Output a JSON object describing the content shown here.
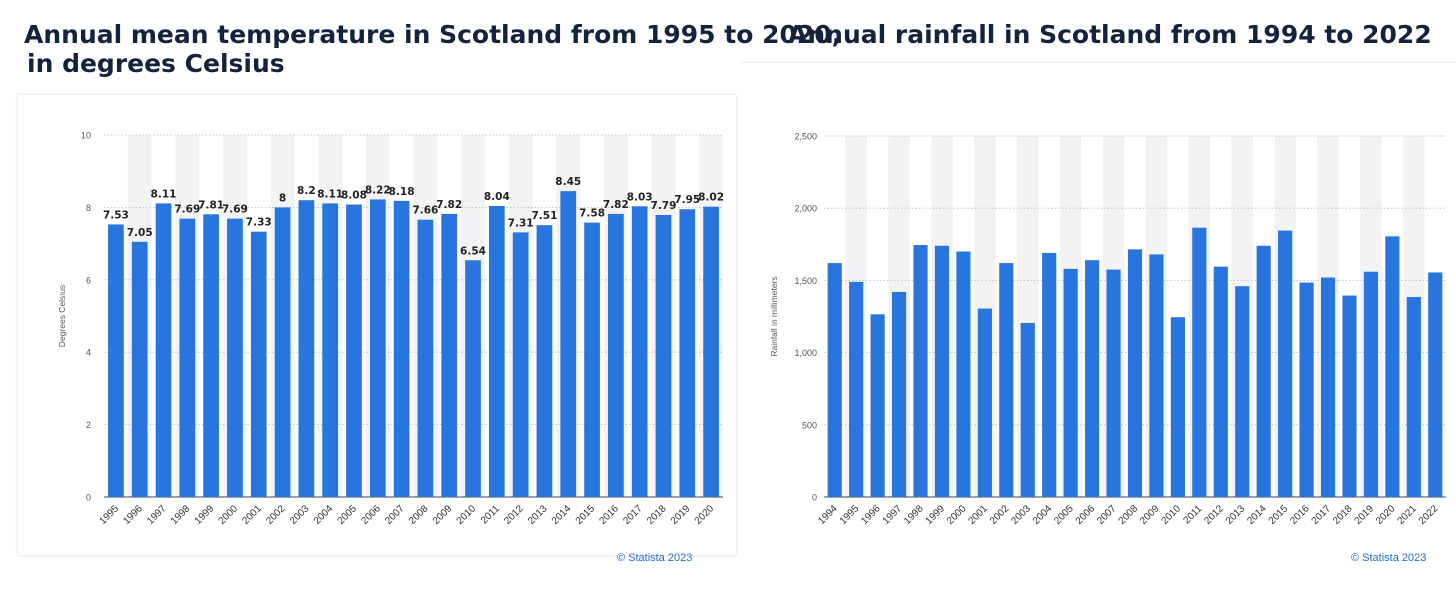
{
  "chart_data": [
    {
      "type": "bar",
      "title": "Annual mean temperature in Scotland from 1995 to 2020, in degrees Celsius",
      "title_lines": [
        "Annual mean temperature in Scotland from 1995 to 2020,",
        "in degrees Celsius"
      ],
      "xlabel": "",
      "ylabel": "Degrees Celsius",
      "ylim": [
        0,
        10
      ],
      "yticks": [
        0,
        2,
        4,
        6,
        8,
        10
      ],
      "ytick_labels": [
        "0",
        "2",
        "4",
        "6",
        "8",
        "10"
      ],
      "categories": [
        "1995",
        "1996",
        "1997",
        "1998",
        "1999",
        "2000",
        "2001",
        "2002",
        "2003",
        "2004",
        "2005",
        "2006",
        "2007",
        "2008",
        "2009",
        "2010",
        "2011",
        "2012",
        "2013",
        "2014",
        "2015",
        "2016",
        "2017",
        "2018",
        "2019",
        "2020"
      ],
      "values": [
        7.53,
        7.05,
        8.11,
        7.69,
        7.81,
        7.69,
        7.33,
        8,
        8.2,
        8.11,
        8.08,
        8.22,
        8.18,
        7.66,
        7.82,
        6.54,
        8.04,
        7.31,
        7.51,
        8.45,
        7.58,
        7.82,
        8.03,
        7.79,
        7.95,
        8.02
      ],
      "data_labels": [
        "7.53",
        "7.05",
        "8.11",
        "7.69",
        "7.81",
        "7.69",
        "7.33",
        "8",
        "8.2",
        "8.11",
        "8.08",
        "8.22",
        "8.18",
        "7.66",
        "7.82",
        "6.54",
        "8.04",
        "7.31",
        "7.51",
        "8.45",
        "7.58",
        "7.82",
        "8.03",
        "7.79",
        "7.95",
        "8.02"
      ],
      "grid": true,
      "bar_color": "#2876dd",
      "credit": "© Statista 2023"
    },
    {
      "type": "bar",
      "title": "Annual rainfall in Scotland from 1994 to 2022",
      "title_lines": [
        "Annual rainfall in Scotland from 1994 to 2022"
      ],
      "xlabel": "",
      "ylabel": "Rainfall in millimeters",
      "ylim": [
        0,
        2500
      ],
      "yticks": [
        0,
        500,
        1000,
        1500,
        2000,
        2500
      ],
      "ytick_labels": [
        "0",
        "500",
        "1,000",
        "1,500",
        "2,000",
        "2,500"
      ],
      "categories": [
        "1994",
        "1995",
        "1996",
        "1997",
        "1998",
        "1999",
        "2000",
        "2001",
        "2002",
        "2003",
        "2004",
        "2005",
        "2006",
        "2007",
        "2008",
        "2009",
        "2010",
        "2011",
        "2012",
        "2013",
        "2014",
        "2015",
        "2016",
        "2017",
        "2018",
        "2019",
        "2020",
        "2021",
        "2022"
      ],
      "values": [
        1620,
        1490,
        1265,
        1420,
        1745,
        1740,
        1700,
        1305,
        1620,
        1205,
        1690,
        1580,
        1640,
        1575,
        1715,
        1680,
        1245,
        1865,
        1595,
        1460,
        1740,
        1845,
        1485,
        1520,
        1395,
        1560,
        1805,
        1385,
        1555
      ],
      "grid": true,
      "bar_color": "#2876dd",
      "credit": "© Statista 2023"
    }
  ]
}
